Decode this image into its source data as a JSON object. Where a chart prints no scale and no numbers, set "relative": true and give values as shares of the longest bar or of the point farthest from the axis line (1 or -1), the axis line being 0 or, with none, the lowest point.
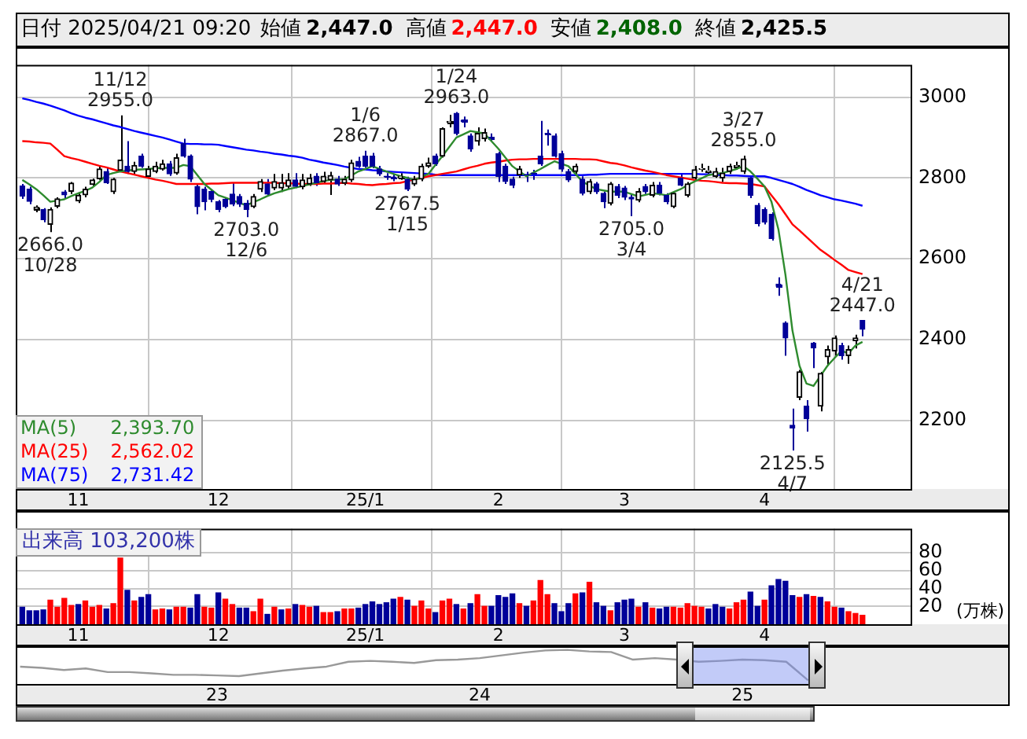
{
  "chart_data": [
    {
      "type": "candlestick",
      "title": "日付 2025/04/21 09:20",
      "annotations": [
        "始値 2,447.0",
        "高値 2,447.0",
        "安値 2,408.0",
        "終値 2,425.5",
        {
          "text": "11/12\n2955.0",
          "y": 2955
        },
        {
          "text": "2666.0\n10/28",
          "y": 2666
        },
        {
          "text": "2703.0\n12/6",
          "y": 2703
        },
        {
          "text": "1/6\n2867.0",
          "y": 2867
        },
        {
          "text": "2767.5\n1/15",
          "y": 2767.5
        },
        {
          "text": "1/24\n2963.0",
          "y": 2963
        },
        {
          "text": "2705.0\n3/4",
          "y": 2705
        },
        {
          "text": "3/27\n2855.0",
          "y": 2855
        },
        {
          "text": "2125.5\n4/7",
          "y": 2125.5
        },
        {
          "text": "4/21\n2447.0",
          "y": 2447
        }
      ],
      "categories": [
        null,
        null,
        null,
        null,
        null,
        null,
        null,
        null,
        "11",
        null,
        null,
        null,
        null,
        null,
        null,
        null,
        null,
        null,
        null,
        null,
        null,
        null,
        null,
        null,
        null,
        null,
        null,
        null,
        "12",
        null,
        null,
        null,
        null,
        null,
        null,
        null,
        null,
        null,
        null,
        null,
        null,
        null,
        null,
        null,
        null,
        null,
        null,
        null,
        null,
        "25/1",
        null,
        null,
        null,
        null,
        null,
        null,
        null,
        null,
        null,
        null,
        null,
        null,
        null,
        null,
        null,
        null,
        null,
        null,
        "2",
        null,
        null,
        null,
        null,
        null,
        null,
        null,
        null,
        null,
        null,
        null,
        null,
        null,
        null,
        null,
        null,
        null,
        "3",
        null,
        null,
        null,
        null,
        null,
        null,
        null,
        null,
        null,
        null,
        null,
        null,
        null,
        null,
        null,
        null,
        null,
        null,
        null,
        "4",
        null,
        null,
        null,
        null,
        null,
        null,
        null,
        null,
        null,
        null,
        null,
        null,
        null,
        null
      ],
      "ohlc": [
        [
          2780,
          2785,
          2748,
          2755
        ],
        [
          2772,
          2778,
          2735,
          2742
        ],
        [
          2722,
          2732,
          2715,
          2728
        ],
        [
          2722,
          2725,
          2690,
          2697
        ],
        [
          2685,
          2727,
          2666,
          2722
        ],
        [
          2730,
          2752,
          2725,
          2748
        ],
        [
          2765,
          2770,
          2750,
          2758
        ],
        [
          2767,
          2790,
          2760,
          2787
        ],
        [
          2743,
          2765,
          2738,
          2757
        ],
        [
          2758,
          2778,
          2752,
          2772
        ],
        [
          2784,
          2798,
          2780,
          2795
        ],
        [
          2798,
          2830,
          2795,
          2822
        ],
        [
          2816,
          2825,
          2785,
          2788
        ],
        [
          2766,
          2800,
          2760,
          2797
        ],
        [
          2819,
          2955,
          2815,
          2844
        ],
        [
          2829,
          2891,
          2810,
          2816
        ],
        [
          2816,
          2840,
          2810,
          2831
        ],
        [
          2854,
          2860,
          2825,
          2829
        ],
        [
          2804,
          2830,
          2800,
          2822
        ],
        [
          2816,
          2840,
          2812,
          2829
        ],
        [
          2822,
          2845,
          2818,
          2835
        ],
        [
          2835,
          2842,
          2805,
          2810
        ],
        [
          2812,
          2860,
          2808,
          2850
        ],
        [
          2885,
          2897,
          2850,
          2854
        ],
        [
          2854,
          2858,
          2790,
          2797
        ],
        [
          2779,
          2785,
          2710,
          2729
        ],
        [
          2772,
          2778,
          2720,
          2741
        ],
        [
          2766,
          2772,
          2740,
          2747
        ],
        [
          2741,
          2745,
          2715,
          2722
        ],
        [
          2747,
          2752,
          2725,
          2729
        ],
        [
          2760,
          2788,
          2730,
          2735
        ],
        [
          2754,
          2760,
          2728,
          2735
        ],
        [
          2737,
          2745,
          2703,
          2722
        ],
        [
          2729,
          2760,
          2725,
          2754
        ],
        [
          2772,
          2797,
          2765,
          2791
        ],
        [
          2785,
          2797,
          2755,
          2760
        ],
        [
          2775,
          2810,
          2770,
          2791
        ],
        [
          2775,
          2810,
          2765,
          2788
        ],
        [
          2779,
          2812,
          2772,
          2795
        ],
        [
          2795,
          2812,
          2775,
          2779
        ],
        [
          2778,
          2810,
          2772,
          2795
        ],
        [
          2785,
          2810,
          2780,
          2800
        ],
        [
          2804,
          2812,
          2780,
          2788
        ],
        [
          2791,
          2815,
          2785,
          2804
        ],
        [
          2795,
          2815,
          2758,
          2806
        ],
        [
          2797,
          2805,
          2780,
          2785
        ],
        [
          2787,
          2805,
          2782,
          2797
        ],
        [
          2795,
          2845,
          2790,
          2837
        ],
        [
          2841,
          2852,
          2825,
          2829
        ],
        [
          2854,
          2867,
          2825,
          2829
        ],
        [
          2854,
          2862,
          2824,
          2829
        ],
        [
          2822,
          2830,
          2805,
          2810
        ],
        [
          2804,
          2812,
          2795,
          2803
        ],
        [
          2802,
          2810,
          2792,
          2800
        ],
        [
          2800,
          2812,
          2795,
          2804
        ],
        [
          2797,
          2803,
          2767.5,
          2772
        ],
        [
          2785,
          2805,
          2780,
          2797
        ],
        [
          2797,
          2835,
          2792,
          2829
        ],
        [
          2829,
          2850,
          2825,
          2837
        ],
        [
          2854,
          2860,
          2830,
          2835
        ],
        [
          2854,
          2925,
          2850,
          2922
        ],
        [
          2937,
          2956,
          2925,
          2940
        ],
        [
          2960,
          2963,
          2905,
          2910
        ],
        [
          2943,
          2952,
          2925,
          2940
        ],
        [
          2904,
          2910,
          2865,
          2872
        ],
        [
          2891,
          2925,
          2880,
          2910
        ],
        [
          2897,
          2922,
          2890,
          2912
        ],
        [
          2900,
          2910,
          2890,
          2899
        ],
        [
          2860,
          2865,
          2790,
          2804
        ],
        [
          2829,
          2835,
          2785,
          2791
        ],
        [
          2797,
          2803,
          2775,
          2782
        ],
        [
          2807,
          2830,
          2800,
          2822
        ],
        [
          2808,
          2815,
          2790,
          2807
        ],
        [
          2812,
          2820,
          2795,
          2810
        ],
        [
          2854,
          2941,
          2830,
          2835
        ],
        [
          2910,
          2920,
          2880,
          2908
        ],
        [
          2904,
          2910,
          2850,
          2854
        ],
        [
          2860,
          2867,
          2815,
          2822
        ],
        [
          2816,
          2822,
          2790,
          2795
        ],
        [
          2816,
          2835,
          2810,
          2829
        ],
        [
          2797,
          2804,
          2757,
          2762
        ],
        [
          2766,
          2797,
          2760,
          2791
        ],
        [
          2785,
          2790,
          2760,
          2766
        ],
        [
          2762,
          2766,
          2725,
          2741
        ],
        [
          2737,
          2790,
          2732,
          2785
        ],
        [
          2779,
          2785,
          2750,
          2757
        ],
        [
          2775,
          2780,
          2745,
          2752
        ],
        [
          2752,
          2760,
          2705,
          2748
        ],
        [
          2745,
          2775,
          2740,
          2766
        ],
        [
          2779,
          2785,
          2760,
          2766
        ],
        [
          2757,
          2790,
          2752,
          2782
        ],
        [
          2782,
          2790,
          2757,
          2762
        ],
        [
          2757,
          2762,
          2735,
          2741
        ],
        [
          2729,
          2766,
          2725,
          2762
        ],
        [
          2800,
          2810,
          2779,
          2782
        ],
        [
          2757,
          2790,
          2752,
          2785
        ],
        [
          2800,
          2830,
          2795,
          2820
        ],
        [
          2822,
          2835,
          2815,
          2823
        ],
        [
          2816,
          2830,
          2810,
          2818
        ],
        [
          2804,
          2825,
          2800,
          2816
        ],
        [
          2800,
          2825,
          2790,
          2812
        ],
        [
          2816,
          2835,
          2810,
          2829
        ],
        [
          2829,
          2840,
          2820,
          2830
        ],
        [
          2816,
          2855,
          2810,
          2847
        ],
        [
          2800,
          2805,
          2750,
          2757
        ],
        [
          2732,
          2738,
          2680,
          2687
        ],
        [
          2722,
          2727,
          2685,
          2691
        ],
        [
          2710,
          2715,
          2645,
          2650
        ],
        [
          2537,
          2554,
          2508,
          2532
        ],
        [
          2441,
          2445,
          2360,
          2404
        ],
        [
          2188,
          2229,
          2125.5,
          2181
        ],
        [
          2257,
          2325,
          2250,
          2320
        ],
        [
          2235,
          2250,
          2172,
          2204
        ],
        [
          2391,
          2394,
          2329,
          2379
        ],
        [
          2235,
          2320,
          2222,
          2316
        ],
        [
          2357,
          2385,
          2335,
          2375
        ],
        [
          2372,
          2410,
          2360,
          2404
        ],
        [
          2385,
          2392,
          2350,
          2360
        ],
        [
          2360,
          2385,
          2340,
          2375
        ],
        [
          2397,
          2412,
          2378,
          2404
        ],
        [
          2447,
          2447,
          2408,
          2425.5
        ]
      ],
      "series": [
        {
          "name": "MA(5) 2,393.70",
          "type": "line",
          "color": "#2e8b2e",
          "values": [
            2795,
            2784,
            2772,
            2757,
            2741,
            2744,
            2747,
            2755,
            2762,
            2768,
            2776,
            2790,
            2807,
            2812,
            2816,
            2818,
            2820,
            2821,
            2822,
            2824,
            2825,
            2825,
            2825,
            2832,
            2829,
            2807,
            2785,
            2771,
            2757,
            2751,
            2745,
            2738,
            2732,
            2740,
            2747,
            2755,
            2762,
            2767,
            2772,
            2776,
            2780,
            2784,
            2788,
            2792,
            2795,
            2796,
            2797,
            2806,
            2816,
            2822,
            2829,
            2822,
            2816,
            2810,
            2804,
            2800,
            2795,
            2802,
            2810,
            2832,
            2854,
            2877,
            2900,
            2908,
            2916,
            2913,
            2910,
            2891,
            2872,
            2850,
            2829,
            2816,
            2804,
            2813,
            2822,
            2832,
            2841,
            2835,
            2829,
            2810,
            2791,
            2781,
            2772,
            2769,
            2766,
            2766,
            2766,
            2760,
            2754,
            2758,
            2762,
            2760,
            2757,
            2765,
            2772,
            2782,
            2791,
            2799,
            2807,
            2810,
            2812,
            2817,
            2822,
            2829,
            2816,
            2798,
            2779,
            2741,
            2672,
            2560,
            2422,
            2335,
            2291,
            2285,
            2310,
            2335,
            2354,
            2372,
            2366,
            2385,
            2394
          ]
        },
        {
          "name": "MA(25) 2,562.02",
          "type": "line",
          "color": "#ff0000",
          "values": [
            2891,
            2890,
            2888,
            2887,
            2885,
            2870,
            2854,
            2849,
            2845,
            2840,
            2835,
            2830,
            2826,
            2821,
            2816,
            2812,
            2808,
            2804,
            2800,
            2796,
            2793,
            2789,
            2785,
            2785,
            2785,
            2785,
            2785,
            2786,
            2786,
            2787,
            2788,
            2788,
            2788,
            2788,
            2788,
            2788,
            2788,
            2787,
            2787,
            2786,
            2785,
            2785,
            2785,
            2786,
            2786,
            2787,
            2788,
            2786,
            2785,
            2783,
            2782,
            2784,
            2785,
            2787,
            2788,
            2792,
            2796,
            2800,
            2804,
            2807,
            2810,
            2813,
            2816,
            2821,
            2826,
            2830,
            2835,
            2838,
            2840,
            2843,
            2845,
            2846,
            2846,
            2847,
            2847,
            2847,
            2847,
            2847,
            2847,
            2847,
            2846,
            2846,
            2845,
            2841,
            2837,
            2835,
            2831,
            2826,
            2822,
            2818,
            2815,
            2811,
            2807,
            2804,
            2801,
            2798,
            2795,
            2793,
            2792,
            2790,
            2788,
            2787,
            2787,
            2786,
            2785,
            2782,
            2779,
            2757,
            2735,
            2710,
            2685,
            2670,
            2654,
            2638,
            2622,
            2610,
            2597,
            2585,
            2572,
            2567,
            2562
          ]
        },
        {
          "name": "MA(75) 2,731.42",
          "type": "line",
          "color": "#0000ff",
          "values": [
            2997,
            2993,
            2988,
            2984,
            2979,
            2973,
            2967,
            2960,
            2954,
            2949,
            2945,
            2940,
            2935,
            2930,
            2926,
            2921,
            2916,
            2912,
            2908,
            2904,
            2900,
            2895,
            2890,
            2885,
            2884,
            2884,
            2883,
            2883,
            2882,
            2879,
            2876,
            2873,
            2870,
            2868,
            2865,
            2863,
            2860,
            2858,
            2855,
            2853,
            2850,
            2845,
            2842,
            2838,
            2835,
            2832,
            2828,
            2825,
            2822,
            2821,
            2819,
            2818,
            2816,
            2815,
            2814,
            2813,
            2812,
            2811,
            2810,
            2808,
            2807,
            2807,
            2807,
            2807,
            2807,
            2807,
            2807,
            2807,
            2807,
            2807,
            2807,
            2807,
            2807,
            2807,
            2807,
            2807,
            2807,
            2807,
            2807,
            2807,
            2807,
            2808,
            2808,
            2809,
            2810,
            2810,
            2810,
            2810,
            2810,
            2810,
            2810,
            2810,
            2810,
            2810,
            2810,
            2810,
            2810,
            2809,
            2809,
            2808,
            2807,
            2806,
            2806,
            2805,
            2804,
            2804,
            2804,
            2800,
            2795,
            2790,
            2785,
            2778,
            2770,
            2764,
            2757,
            2752,
            2747,
            2744,
            2740,
            2736,
            2731
          ]
        }
      ],
      "ylim": [
        2030,
        3080
      ],
      "yticks": [
        2200,
        2400,
        2600,
        2800,
        3000
      ],
      "grid": true,
      "legend": "bottom left"
    },
    {
      "type": "bar",
      "title": "出来高 103,200株",
      "ylabel": "(万株)",
      "categories": [
        null,
        null,
        null,
        null,
        null,
        null,
        null,
        null,
        "11",
        null,
        null,
        null,
        null,
        null,
        null,
        null,
        null,
        null,
        null,
        null,
        null,
        null,
        null,
        null,
        null,
        null,
        null,
        null,
        "12",
        null,
        null,
        null,
        null,
        null,
        null,
        null,
        null,
        null,
        null,
        null,
        null,
        null,
        null,
        null,
        null,
        null,
        null,
        null,
        null,
        "25/1",
        null,
        null,
        null,
        null,
        null,
        null,
        null,
        null,
        null,
        null,
        null,
        null,
        null,
        null,
        null,
        null,
        null,
        null,
        "2",
        null,
        null,
        null,
        null,
        null,
        null,
        null,
        null,
        null,
        null,
        null,
        null,
        null,
        null,
        null,
        null,
        null,
        "3",
        null,
        null,
        null,
        null,
        null,
        null,
        null,
        null,
        null,
        null,
        null,
        null,
        null,
        null,
        null,
        null,
        null,
        null,
        null,
        "4",
        null,
        null,
        null,
        null,
        null,
        null,
        null,
        null,
        null,
        null,
        null,
        null,
        null,
        null
      ],
      "values": [
        19,
        15,
        15,
        16,
        27,
        19,
        29,
        21,
        22,
        26,
        19,
        21,
        17,
        23,
        74,
        38,
        26,
        30,
        33,
        16,
        17,
        16,
        19,
        19,
        18,
        33,
        19,
        18,
        35,
        28,
        22,
        18,
        18,
        14,
        28,
        11,
        19,
        16,
        17,
        22,
        21,
        19,
        20,
        13,
        13,
        14,
        17,
        17,
        18,
        22,
        25,
        22,
        24,
        28,
        30,
        27,
        20,
        26,
        17,
        13,
        26,
        28,
        22,
        17,
        23,
        33,
        20,
        20,
        32,
        30,
        34,
        23,
        20,
        26,
        49,
        33,
        23,
        14,
        23,
        34,
        35,
        47,
        24,
        20,
        15,
        24,
        27,
        28,
        19,
        24,
        18,
        17,
        19,
        19,
        18,
        23,
        20,
        19,
        17,
        22,
        19,
        17,
        24,
        27,
        36,
        20,
        27,
        43,
        50,
        48,
        32,
        30,
        33,
        31,
        30,
        25,
        19,
        18,
        14,
        12,
        10
      ],
      "colors": [
        "#000099",
        "#000099",
        "#000099",
        "#000099",
        "#ff0000",
        "#ff0000",
        "#ff0000",
        "#ff0000",
        "#000099",
        "#ff0000",
        "#ff0000",
        "#ff0000",
        "#000099",
        "#ff0000",
        "#ff0000",
        "#000099",
        "#ff0000",
        "#000099",
        "#000099",
        "#ff0000",
        "#ff0000",
        "#000099",
        "#ff0000",
        "#ff0000",
        "#000099",
        "#000099",
        "#ff0000",
        "#ff0000",
        "#000099",
        "#ff0000",
        "#ff0000",
        "#000099",
        "#000099",
        "#ff0000",
        "#ff0000",
        "#000099",
        "#ff0000",
        "#000099",
        "#ff0000",
        "#000099",
        "#ff0000",
        "#ff0000",
        "#000099",
        "#ff0000",
        "#ff0000",
        "#000099",
        "#ff0000",
        "#ff0000",
        "#000099",
        "#000099",
        "#000099",
        "#000099",
        "#000099",
        "#000099",
        "#ff0000",
        "#000099",
        "#ff0000",
        "#ff0000",
        "#ff0000",
        "#000099",
        "#ff0000",
        "#ff0000",
        "#000099",
        "#ff0000",
        "#000099",
        "#ff0000",
        "#ff0000",
        "#000099",
        "#000099",
        "#000099",
        "#000099",
        "#ff0000",
        "#000099",
        "#ff0000",
        "#ff0000",
        "#ff0000",
        "#000099",
        "#000099",
        "#000099",
        "#ff0000",
        "#000099",
        "#ff0000",
        "#000099",
        "#000099",
        "#ff0000",
        "#000099",
        "#000099",
        "#000099",
        "#ff0000",
        "#000099",
        "#ff0000",
        "#000099",
        "#000099",
        "#ff0000",
        "#ff0000",
        "#ff0000",
        "#ff0000",
        "#ff0000",
        "#000099",
        "#000099",
        "#000099",
        "#ff0000",
        "#ff0000",
        "#ff0000",
        "#000099",
        "#000099",
        "#ff0000",
        "#000099",
        "#000099",
        "#000099",
        "#000099",
        "#ff0000",
        "#000099",
        "#ff0000",
        "#000099",
        "#ff0000",
        "#ff0000",
        "#000099",
        "#ff0000",
        "#ff0000",
        "#ff0000"
      ],
      "ylim": [
        0,
        107
      ],
      "yticks": [
        20,
        40,
        60,
        80
      ],
      "grid": true
    },
    {
      "type": "line",
      "relative": true,
      "color": "#999999",
      "categories": [
        null,
        null,
        null,
        null,
        null,
        null,
        null,
        null,
        null,
        "23",
        null,
        null,
        null,
        null,
        null,
        null,
        null,
        null,
        null,
        null,
        null,
        "24",
        null,
        null,
        null,
        null,
        null,
        null,
        null,
        null,
        null,
        null,
        null,
        "25",
        null,
        null,
        null
      ],
      "values": [
        0.45,
        0.41,
        0.34,
        0.39,
        0.27,
        0.27,
        0.23,
        0.18,
        0.18,
        0.16,
        0.14,
        0.23,
        0.32,
        0.39,
        0.45,
        0.61,
        0.64,
        0.61,
        0.57,
        0.66,
        0.68,
        0.73,
        0.82,
        0.91,
        0.98,
        1,
        0.95,
        0.93,
        0.68,
        0.73,
        0.68,
        0.61,
        0.64,
        0.68,
        0.66,
        0.61,
        0
      ]
    }
  ]
}
